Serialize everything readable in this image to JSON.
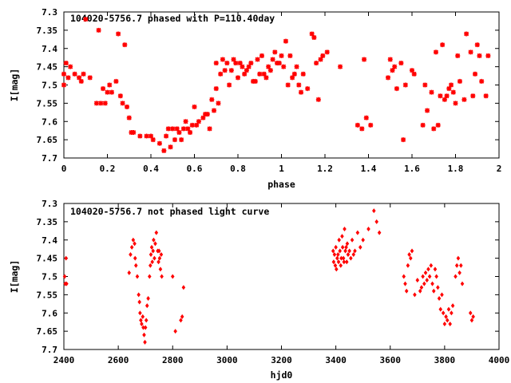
{
  "chart_data": [
    {
      "type": "scatter",
      "title": "104020-5756.7 phased with P=110.40day",
      "xlabel": "phase",
      "ylabel": "I[mag]",
      "xlim": [
        0,
        2
      ],
      "ylim": [
        7.7,
        7.3
      ],
      "y_inverted": true,
      "xticks": [
        "0",
        "0.2",
        "0.4",
        "0.6",
        "0.8",
        "1",
        "1.2",
        "1.4",
        "1.6",
        "1.8",
        "2"
      ],
      "yticks": [
        "7.3",
        "7.35",
        "7.4",
        "7.45",
        "7.5",
        "7.55",
        "7.6",
        "7.65",
        "7.7"
      ],
      "grid": false,
      "marker_color": "#ff0000",
      "points": [
        [
          0.0,
          7.47
        ],
        [
          0.0,
          7.5
        ],
        [
          0.01,
          7.44
        ],
        [
          0.02,
          7.48
        ],
        [
          0.03,
          7.45
        ],
        [
          0.05,
          7.47
        ],
        [
          0.07,
          7.48
        ],
        [
          0.08,
          7.49
        ],
        [
          0.09,
          7.47
        ],
        [
          0.1,
          7.32
        ],
        [
          0.12,
          7.48
        ],
        [
          0.15,
          7.55
        ],
        [
          0.16,
          7.35
        ],
        [
          0.17,
          7.55
        ],
        [
          0.18,
          7.51
        ],
        [
          0.19,
          7.55
        ],
        [
          0.2,
          7.52
        ],
        [
          0.21,
          7.5
        ],
        [
          0.22,
          7.52
        ],
        [
          0.24,
          7.49
        ],
        [
          0.25,
          7.36
        ],
        [
          0.26,
          7.53
        ],
        [
          0.27,
          7.55
        ],
        [
          0.28,
          7.39
        ],
        [
          0.29,
          7.56
        ],
        [
          0.3,
          7.59
        ],
        [
          0.31,
          7.63
        ],
        [
          0.32,
          7.63
        ],
        [
          0.35,
          7.64
        ],
        [
          0.38,
          7.64
        ],
        [
          0.4,
          7.64
        ],
        [
          0.41,
          7.65
        ],
        [
          0.44,
          7.66
        ],
        [
          0.46,
          7.68
        ],
        [
          0.47,
          7.64
        ],
        [
          0.48,
          7.62
        ],
        [
          0.49,
          7.67
        ],
        [
          0.5,
          7.62
        ],
        [
          0.51,
          7.65
        ],
        [
          0.52,
          7.62
        ],
        [
          0.53,
          7.63
        ],
        [
          0.54,
          7.65
        ],
        [
          0.55,
          7.62
        ],
        [
          0.56,
          7.6
        ],
        [
          0.57,
          7.62
        ],
        [
          0.58,
          7.63
        ],
        [
          0.59,
          7.61
        ],
        [
          0.6,
          7.56
        ],
        [
          0.61,
          7.61
        ],
        [
          0.62,
          7.6
        ],
        [
          0.64,
          7.59
        ],
        [
          0.65,
          7.58
        ],
        [
          0.66,
          7.58
        ],
        [
          0.67,
          7.62
        ],
        [
          0.68,
          7.54
        ],
        [
          0.69,
          7.57
        ],
        [
          0.7,
          7.51
        ],
        [
          0.7,
          7.44
        ],
        [
          0.71,
          7.55
        ],
        [
          0.72,
          7.47
        ],
        [
          0.73,
          7.43
        ],
        [
          0.74,
          7.46
        ],
        [
          0.75,
          7.44
        ],
        [
          0.76,
          7.5
        ],
        [
          0.77,
          7.46
        ],
        [
          0.78,
          7.43
        ],
        [
          0.79,
          7.44
        ],
        [
          0.8,
          7.48
        ],
        [
          0.81,
          7.44
        ],
        [
          0.82,
          7.45
        ],
        [
          0.83,
          7.47
        ],
        [
          0.84,
          7.46
        ],
        [
          0.85,
          7.45
        ],
        [
          0.86,
          7.44
        ],
        [
          0.87,
          7.49
        ],
        [
          0.88,
          7.49
        ],
        [
          0.89,
          7.43
        ],
        [
          0.9,
          7.47
        ],
        [
          0.91,
          7.42
        ],
        [
          0.92,
          7.47
        ],
        [
          0.93,
          7.48
        ],
        [
          0.94,
          7.45
        ],
        [
          0.95,
          7.46
        ],
        [
          0.96,
          7.43
        ],
        [
          0.97,
          7.41
        ],
        [
          0.98,
          7.44
        ],
        [
          0.99,
          7.44
        ],
        [
          1.0,
          7.42
        ],
        [
          1.01,
          7.45
        ],
        [
          1.02,
          7.38
        ],
        [
          1.03,
          7.5
        ],
        [
          1.04,
          7.42
        ],
        [
          1.05,
          7.48
        ],
        [
          1.06,
          7.47
        ],
        [
          1.07,
          7.45
        ],
        [
          1.08,
          7.5
        ],
        [
          1.09,
          7.52
        ],
        [
          1.1,
          7.47
        ],
        [
          1.12,
          7.51
        ],
        [
          1.14,
          7.36
        ],
        [
          1.15,
          7.37
        ],
        [
          1.16,
          7.44
        ],
        [
          1.17,
          7.54
        ],
        [
          1.18,
          7.43
        ],
        [
          1.19,
          7.42
        ],
        [
          1.21,
          7.41
        ],
        [
          1.27,
          7.45
        ],
        [
          1.35,
          7.61
        ],
        [
          1.37,
          7.62
        ],
        [
          1.38,
          7.43
        ],
        [
          1.39,
          7.59
        ],
        [
          1.41,
          7.61
        ],
        [
          1.49,
          7.48
        ],
        [
          1.5,
          7.43
        ],
        [
          1.51,
          7.46
        ],
        [
          1.52,
          7.45
        ],
        [
          1.53,
          7.51
        ],
        [
          1.55,
          7.44
        ],
        [
          1.56,
          7.65
        ],
        [
          1.57,
          7.5
        ],
        [
          1.6,
          7.46
        ],
        [
          1.61,
          7.47
        ],
        [
          1.65,
          7.61
        ],
        [
          1.66,
          7.5
        ],
        [
          1.67,
          7.57
        ],
        [
          1.69,
          7.52
        ],
        [
          1.7,
          7.62
        ],
        [
          1.71,
          7.41
        ],
        [
          1.72,
          7.61
        ],
        [
          1.73,
          7.53
        ],
        [
          1.74,
          7.39
        ],
        [
          1.75,
          7.54
        ],
        [
          1.76,
          7.53
        ],
        [
          1.77,
          7.51
        ],
        [
          1.78,
          7.5
        ],
        [
          1.79,
          7.52
        ],
        [
          1.8,
          7.55
        ],
        [
          1.81,
          7.42
        ],
        [
          1.82,
          7.49
        ],
        [
          1.84,
          7.54
        ],
        [
          1.85,
          7.36
        ],
        [
          1.87,
          7.41
        ],
        [
          1.88,
          7.53
        ],
        [
          1.89,
          7.47
        ],
        [
          1.9,
          7.39
        ],
        [
          1.91,
          7.42
        ],
        [
          1.92,
          7.49
        ],
        [
          1.94,
          7.53
        ],
        [
          1.95,
          7.42
        ]
      ]
    },
    {
      "type": "scatter",
      "title": "104020-5756.7 not phased light curve",
      "xlabel": "hjd0",
      "ylabel": "I[mag]",
      "xlim": [
        2400,
        4000
      ],
      "ylim": [
        7.7,
        7.3
      ],
      "y_inverted": true,
      "xticks": [
        "2400",
        "2600",
        "2800",
        "3000",
        "3200",
        "3400",
        "3600",
        "3800",
        "4000"
      ],
      "yticks": [
        "7.3",
        "7.35",
        "7.4",
        "7.45",
        "7.5",
        "7.55",
        "7.6",
        "7.65",
        "7.7"
      ],
      "grid": false,
      "marker_color": "#ff0000",
      "points": [
        [
          2403,
          7.5
        ],
        [
          2405,
          7.52
        ],
        [
          2408,
          7.45
        ],
        [
          2410,
          7.52
        ],
        [
          2640,
          7.49
        ],
        [
          2645,
          7.44
        ],
        [
          2650,
          7.42
        ],
        [
          2655,
          7.4
        ],
        [
          2660,
          7.41
        ],
        [
          2662,
          7.45
        ],
        [
          2665,
          7.47
        ],
        [
          2670,
          7.5
        ],
        [
          2675,
          7.55
        ],
        [
          2678,
          7.57
        ],
        [
          2680,
          7.6
        ],
        [
          2683,
          7.62
        ],
        [
          2686,
          7.63
        ],
        [
          2690,
          7.61
        ],
        [
          2692,
          7.64
        ],
        [
          2695,
          7.66
        ],
        [
          2698,
          7.68
        ],
        [
          2700,
          7.64
        ],
        [
          2703,
          7.62
        ],
        [
          2706,
          7.58
        ],
        [
          2710,
          7.56
        ],
        [
          2715,
          7.5
        ],
        [
          2718,
          7.47
        ],
        [
          2720,
          7.44
        ],
        [
          2723,
          7.42
        ],
        [
          2725,
          7.46
        ],
        [
          2728,
          7.43
        ],
        [
          2730,
          7.4
        ],
        [
          2733,
          7.45
        ],
        [
          2736,
          7.41
        ],
        [
          2740,
          7.38
        ],
        [
          2745,
          7.43
        ],
        [
          2748,
          7.46
        ],
        [
          2750,
          7.43
        ],
        [
          2752,
          7.45
        ],
        [
          2755,
          7.48
        ],
        [
          2758,
          7.44
        ],
        [
          2760,
          7.5
        ],
        [
          2800,
          7.5
        ],
        [
          2810,
          7.65
        ],
        [
          2830,
          7.62
        ],
        [
          2835,
          7.61
        ],
        [
          2840,
          7.53
        ],
        [
          3390,
          7.43
        ],
        [
          3392,
          7.46
        ],
        [
          3395,
          7.44
        ],
        [
          3398,
          7.47
        ],
        [
          3400,
          7.42
        ],
        [
          3402,
          7.48
        ],
        [
          3405,
          7.45
        ],
        [
          3408,
          7.44
        ],
        [
          3410,
          7.46
        ],
        [
          3412,
          7.4
        ],
        [
          3415,
          7.43
        ],
        [
          3418,
          7.47
        ],
        [
          3420,
          7.45
        ],
        [
          3423,
          7.39
        ],
        [
          3425,
          7.42
        ],
        [
          3428,
          7.45
        ],
        [
          3430,
          7.46
        ],
        [
          3432,
          7.37
        ],
        [
          3435,
          7.43
        ],
        [
          3438,
          7.42
        ],
        [
          3440,
          7.46
        ],
        [
          3442,
          7.41
        ],
        [
          3445,
          7.44
        ],
        [
          3450,
          7.43
        ],
        [
          3455,
          7.45
        ],
        [
          3460,
          7.4
        ],
        [
          3465,
          7.44
        ],
        [
          3470,
          7.43
        ],
        [
          3480,
          7.38
        ],
        [
          3490,
          7.42
        ],
        [
          3500,
          7.4
        ],
        [
          3520,
          7.37
        ],
        [
          3540,
          7.32
        ],
        [
          3550,
          7.35
        ],
        [
          3560,
          7.38
        ],
        [
          3650,
          7.5
        ],
        [
          3655,
          7.52
        ],
        [
          3660,
          7.54
        ],
        [
          3665,
          7.47
        ],
        [
          3670,
          7.44
        ],
        [
          3675,
          7.45
        ],
        [
          3680,
          7.43
        ],
        [
          3690,
          7.55
        ],
        [
          3700,
          7.51
        ],
        [
          3710,
          7.54
        ],
        [
          3715,
          7.53
        ],
        [
          3720,
          7.5
        ],
        [
          3725,
          7.52
        ],
        [
          3730,
          7.49
        ],
        [
          3735,
          7.51
        ],
        [
          3740,
          7.48
        ],
        [
          3745,
          7.5
        ],
        [
          3750,
          7.47
        ],
        [
          3755,
          7.52
        ],
        [
          3760,
          7.54
        ],
        [
          3765,
          7.48
        ],
        [
          3770,
          7.5
        ],
        [
          3775,
          7.53
        ],
        [
          3780,
          7.56
        ],
        [
          3785,
          7.59
        ],
        [
          3790,
          7.55
        ],
        [
          3795,
          7.6
        ],
        [
          3800,
          7.63
        ],
        [
          3805,
          7.61
        ],
        [
          3810,
          7.62
        ],
        [
          3815,
          7.59
        ],
        [
          3820,
          7.63
        ],
        [
          3825,
          7.6
        ],
        [
          3830,
          7.58
        ],
        [
          3840,
          7.5
        ],
        [
          3845,
          7.47
        ],
        [
          3850,
          7.45
        ],
        [
          3855,
          7.49
        ],
        [
          3860,
          7.47
        ],
        [
          3865,
          7.52
        ],
        [
          3895,
          7.6
        ],
        [
          3900,
          7.62
        ],
        [
          3905,
          7.61
        ]
      ]
    }
  ]
}
